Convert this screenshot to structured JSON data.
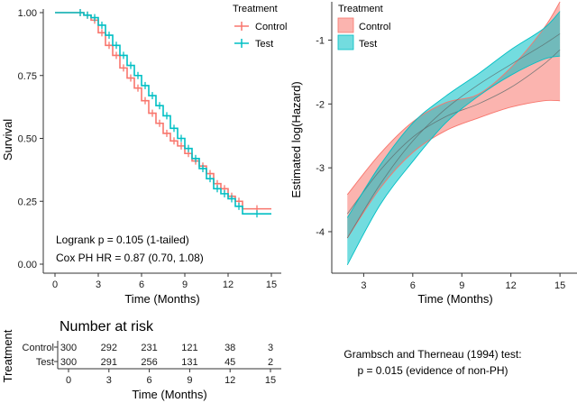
{
  "chart_data": [
    {
      "id": "km",
      "type": "line",
      "subtype": "kaplan-meier-survival",
      "xlabel": "Time (Months)",
      "ylabel": "Survival",
      "xlim": [
        0,
        15
      ],
      "ylim": [
        0,
        1
      ],
      "x_ticks": [
        "0",
        "3",
        "6",
        "9",
        "12",
        "15"
      ],
      "y_ticks": [
        "0.00",
        "0.25",
        "0.50",
        "0.75",
        "1.00"
      ],
      "legend_title": "Treatment",
      "legend_position": "top-right",
      "series": [
        {
          "name": "Control",
          "color": "#F8766D",
          "x": [
            0,
            1.5,
            2.0,
            2.5,
            3.0,
            3.5,
            4.0,
            4.5,
            5.0,
            5.5,
            6.0,
            6.5,
            7.0,
            7.5,
            8.0,
            8.5,
            9.0,
            9.5,
            10.0,
            10.5,
            11.0,
            11.5,
            12.0,
            12.5,
            13.0,
            15.0
          ],
          "y": [
            1.0,
            1.0,
            0.99,
            0.97,
            0.92,
            0.87,
            0.83,
            0.78,
            0.74,
            0.7,
            0.65,
            0.6,
            0.56,
            0.52,
            0.49,
            0.47,
            0.44,
            0.41,
            0.39,
            0.36,
            0.32,
            0.3,
            0.27,
            0.25,
            0.22,
            0.22
          ]
        },
        {
          "name": "Test",
          "color": "#00BFC4",
          "x": [
            0,
            1.5,
            2.0,
            2.5,
            3.0,
            3.5,
            4.0,
            4.5,
            5.0,
            5.5,
            6.0,
            6.5,
            7.0,
            7.5,
            8.0,
            8.5,
            9.0,
            9.5,
            10.0,
            10.5,
            11.0,
            11.5,
            12.0,
            12.5,
            13.0,
            15.0
          ],
          "y": [
            1.0,
            1.0,
            0.99,
            0.98,
            0.95,
            0.91,
            0.87,
            0.83,
            0.79,
            0.75,
            0.71,
            0.67,
            0.63,
            0.59,
            0.54,
            0.5,
            0.46,
            0.42,
            0.38,
            0.34,
            0.3,
            0.28,
            0.26,
            0.23,
            0.2,
            0.2
          ]
        }
      ],
      "annotations": [
        "Logrank p = 0.105 (1-tailed)",
        "Cox PH HR = 0.87 (0.70, 1.08)"
      ]
    },
    {
      "id": "hazard",
      "type": "line",
      "subtype": "log-hazard-with-ci",
      "xlabel": "Time (Months)",
      "ylabel": "Estimated log(Hazard)",
      "xlim": [
        1.6,
        15.6
      ],
      "ylim": [
        -4.65,
        -0.4
      ],
      "x_ticks": [
        "3",
        "6",
        "9",
        "12",
        "15"
      ],
      "y_ticks": [
        "-4",
        "-3",
        "-2",
        "-1"
      ],
      "legend_title": "Treatment",
      "legend_position": "top-left",
      "series": [
        {
          "name": "Control",
          "color": "#F8766D",
          "x": [
            2,
            4,
            6,
            8,
            10,
            12,
            14,
            15
          ],
          "y": [
            -3.72,
            -3.04,
            -2.52,
            -2.2,
            -2.0,
            -1.74,
            -1.38,
            -1.15
          ],
          "lower": [
            -4.1,
            -3.32,
            -2.76,
            -2.42,
            -2.22,
            -2.05,
            -1.95,
            -1.95
          ],
          "upper": [
            -3.42,
            -2.78,
            -2.28,
            -1.98,
            -1.85,
            -1.43,
            -0.82,
            -0.4
          ]
        },
        {
          "name": "Test",
          "color": "#00BFC4",
          "x": [
            2,
            4,
            6,
            8,
            10,
            12,
            14,
            15
          ],
          "y": [
            -4.1,
            -3.26,
            -2.58,
            -2.08,
            -1.7,
            -1.38,
            -1.07,
            -0.9
          ],
          "lower": [
            -4.52,
            -3.58,
            -2.9,
            -2.3,
            -1.88,
            -1.55,
            -1.3,
            -1.25
          ],
          "upper": [
            -3.78,
            -2.96,
            -2.3,
            -1.88,
            -1.53,
            -1.15,
            -0.82,
            -0.55
          ]
        }
      ]
    },
    {
      "id": "risk",
      "type": "table",
      "title": "Number at risk",
      "row_title": "Treatment",
      "xlabel": "Time (Months)",
      "x_ticks": [
        "0",
        "3",
        "6",
        "9",
        "12",
        "15"
      ],
      "rows": [
        {
          "name": "Control",
          "color": "#F8766D",
          "values": [
            "300",
            "292",
            "231",
            "121",
            "38",
            "3"
          ]
        },
        {
          "name": "Test",
          "color": "#00BFC4",
          "values": [
            "300",
            "291",
            "256",
            "131",
            "45",
            "2"
          ]
        }
      ]
    }
  ],
  "test_note": [
    "Grambsch and Therneau (1994) test:",
    "p = 0.015 (evidence of non-PH)"
  ]
}
